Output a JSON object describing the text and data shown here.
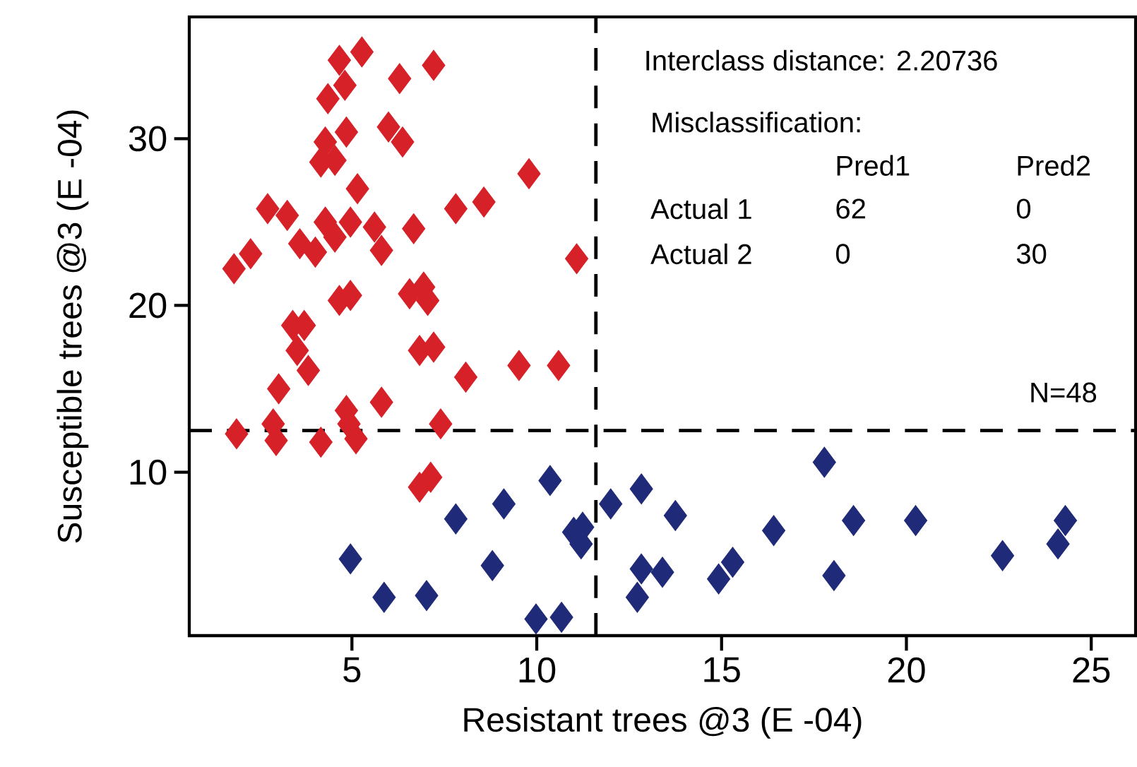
{
  "chart_data": {
    "type": "scatter",
    "xlabel": "Resistant trees @3 (E -04)",
    "ylabel": "Susceptible trees @3 (E -04)",
    "xlim": [
      0.6,
      26.2
    ],
    "ylim": [
      0.2,
      37.3
    ],
    "xticks": [
      5,
      10,
      15,
      20,
      25
    ],
    "yticks": [
      10,
      20,
      30
    ],
    "marker": "diamond",
    "grid": false,
    "series": [
      {
        "color": "#d62128",
        "x": [
          5.27,
          4.66,
          4.81,
          4.35,
          6.29,
          7.21,
          5.99,
          6.37,
          4.85,
          4.28,
          4.16,
          4.54,
          5.15,
          9.79,
          2.72,
          3.25,
          4.28,
          4.96,
          4.54,
          3.59,
          4.01,
          5.61,
          5.8,
          6.67,
          7.81,
          8.57,
          11.08,
          2.26,
          1.81,
          4.66,
          4.96,
          3.4,
          3.71,
          6.56,
          6.94,
          7.05,
          3.52,
          3.82,
          3.02,
          4.85,
          5.8,
          7.4,
          9.52,
          10.59,
          6.83,
          7.21,
          8.08,
          1.88,
          2.87,
          2.95,
          4.16,
          5.11,
          4.92,
          6.83,
          7.13
        ],
        "values": [
          35.2,
          34.7,
          33.2,
          32.4,
          33.6,
          34.4,
          30.7,
          29.8,
          30.4,
          29.8,
          28.6,
          28.7,
          27.0,
          27.9,
          25.8,
          25.4,
          25.0,
          25.0,
          24.1,
          23.7,
          23.2,
          24.7,
          23.3,
          24.6,
          25.8,
          26.2,
          22.8,
          23.1,
          22.2,
          20.3,
          20.6,
          18.8,
          18.8,
          20.7,
          21.1,
          20.3,
          17.3,
          16.1,
          15.0,
          13.7,
          14.2,
          12.9,
          16.4,
          16.4,
          17.3,
          17.5,
          15.7,
          12.3,
          12.9,
          11.9,
          11.8,
          12.0,
          12.9,
          9.1,
          9.7
        ]
      },
      {
        "color": "#1f2a78",
        "x": [
          10.36,
          9.11,
          7.81,
          12.0,
          12.83,
          11.0,
          11.24,
          11.2,
          4.96,
          8.8,
          5.87,
          7.02,
          9.98,
          10.67,
          12.83,
          12.72,
          13.75,
          17.78,
          18.57,
          20.25,
          16.41,
          24.3,
          24.1,
          22.6,
          18.04,
          13.4,
          14.92,
          15.3
        ],
        "values": [
          9.5,
          8.1,
          7.2,
          8.1,
          9.0,
          6.4,
          6.7,
          5.7,
          4.8,
          4.4,
          2.5,
          2.6,
          1.2,
          1.3,
          4.2,
          2.5,
          7.4,
          10.6,
          7.1,
          7.1,
          6.5,
          7.1,
          5.7,
          5.0,
          3.8,
          4.0,
          3.6,
          4.6
        ]
      }
    ],
    "ref_lines": [
      {
        "axis": "x",
        "value": 11.6,
        "line_style": "dashed"
      },
      {
        "axis": "y",
        "value": 12.5,
        "line_style": "dashed"
      }
    ],
    "annotations": [
      "Interclass distance: 2.20736",
      "Misclassification:",
      "Pred1",
      "Pred2",
      "Actual 1",
      "62",
      "0",
      "Actual 2",
      "0",
      "30",
      "N=48"
    ]
  }
}
